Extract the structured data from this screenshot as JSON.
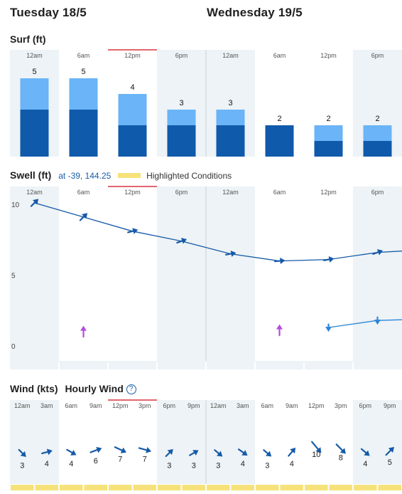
{
  "days": [
    "Tuesday 18/5",
    "Wednesday 19/5"
  ],
  "colors": {
    "shade": "#edf3f6",
    "surf_light": "#6ab4f7",
    "surf_dark": "#0f5aab",
    "swell_line": "#165aa8",
    "swell_line2": "#2b86d8",
    "swell_marker": "#b44ee0",
    "wind_arrow": "#165aa8",
    "highlight": "#f6e27a",
    "now_marker": "#d9333f"
  },
  "surf": {
    "title": "Surf (ft)",
    "time_labels": [
      "12am",
      "6am",
      "12pm",
      "6pm",
      "12am",
      "6am",
      "12pm",
      "6pm"
    ]
  },
  "swell": {
    "title": "Swell (ft)",
    "location": "at -39, 144.25",
    "legend_label": "Highlighted Conditions",
    "time_labels": [
      "12am",
      "6am",
      "12pm",
      "6pm",
      "12am",
      "6am",
      "12pm",
      "6pm"
    ],
    "y_ticks": [
      "10",
      "5",
      "0"
    ]
  },
  "wind": {
    "title": "Wind (kts)",
    "subtitle": "Hourly Wind",
    "help": "?",
    "time_labels": [
      "12am",
      "3am",
      "6am",
      "9am",
      "12pm",
      "3pm",
      "6pm",
      "9pm",
      "12am",
      "3am",
      "6am",
      "9am",
      "12pm",
      "3pm",
      "6pm",
      "9pm"
    ]
  },
  "chart_data": [
    {
      "type": "bar",
      "title": "Surf (ft)",
      "categories": [
        "12am",
        "6am",
        "12pm",
        "6pm",
        "12am",
        "6am",
        "12pm",
        "6pm"
      ],
      "series": [
        {
          "values": [
            5,
            5,
            4,
            3,
            3,
            2,
            2,
            2
          ]
        },
        {
          "values": [
            3,
            3,
            2,
            2,
            2,
            2,
            1,
            1
          ]
        }
      ],
      "ylim": [
        0,
        5.5
      ]
    },
    {
      "type": "line",
      "title": "Swell (ft)",
      "ylim": [
        0,
        10
      ],
      "y_ticks": [
        0,
        5,
        10
      ],
      "x": [
        "12am",
        "6am",
        "12pm",
        "6pm",
        "12am",
        "6am",
        "12pm",
        "6pm",
        "12am"
      ],
      "series": [
        {
          "values": [
            10.1,
            9.1,
            8.1,
            7.4,
            6.5,
            6.0,
            6.1,
            6.6,
            6.8
          ],
          "directions": [
            45,
            45,
            75,
            70,
            80,
            85,
            80,
            70
          ]
        },
        {
          "x": [
            "12pm",
            "6pm",
            "12am"
          ],
          "values": [
            1.3,
            1.8,
            1.9
          ],
          "directions": [
            180,
            180
          ]
        }
      ],
      "markers": [
        {
          "x": "6am",
          "day": 0,
          "value": 1.0,
          "direction": 0
        },
        {
          "x": "6am",
          "day": 1,
          "value": 1.1,
          "direction": 0
        }
      ]
    },
    {
      "type": "scatter",
      "title": "Wind (kts)",
      "categories": [
        "12am",
        "3am",
        "6am",
        "9am",
        "12pm",
        "3pm",
        "6pm",
        "9pm",
        "12am",
        "3am",
        "6am",
        "9am",
        "12pm",
        "3pm",
        "6pm",
        "9pm"
      ],
      "values": [
        3,
        4,
        4,
        6,
        7,
        7,
        3,
        3,
        3,
        4,
        3,
        4,
        10,
        8,
        4,
        5
      ],
      "directions": [
        135,
        75,
        120,
        70,
        115,
        105,
        45,
        60,
        130,
        125,
        130,
        40,
        140,
        135,
        130,
        45
      ]
    }
  ]
}
